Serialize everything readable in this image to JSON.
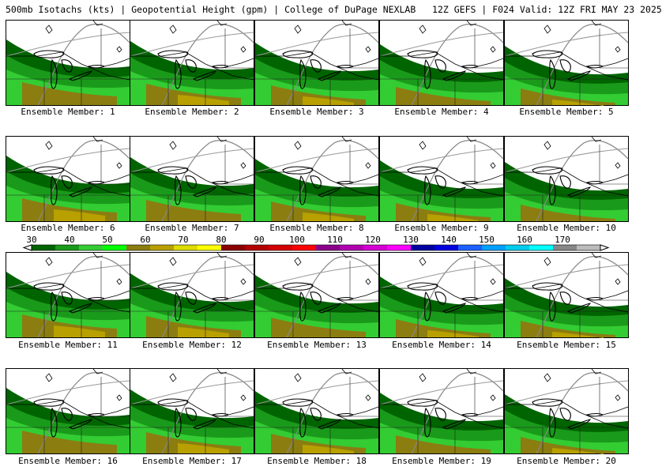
{
  "title": "500mb Isotachs (kts) | Geopotential Height (gpm) | College of DuPage NEXLAB   12Z GEFS | F024 Valid: 12Z FRI MAY 23 2025",
  "caption_prefix": "Ensemble Member:",
  "members": [
    {
      "number": "1",
      "label": "Ensemble Member: 1"
    },
    {
      "number": "2",
      "label": "Ensemble Member: 2"
    },
    {
      "number": "3",
      "label": "Ensemble Member: 3"
    },
    {
      "number": "4",
      "label": "Ensemble Member: 4"
    },
    {
      "number": "5",
      "label": "Ensemble Member: 5"
    },
    {
      "number": "6",
      "label": "Ensemble Member: 6"
    },
    {
      "number": "7",
      "label": "Ensemble Member: 7"
    },
    {
      "number": "8",
      "label": "Ensemble Member: 8"
    },
    {
      "number": "9",
      "label": "Ensemble Member: 9"
    },
    {
      "number": "10",
      "label": "Ensemble Member: 10"
    },
    {
      "number": "11",
      "label": "Ensemble Member: 11"
    },
    {
      "number": "12",
      "label": "Ensemble Member: 12"
    },
    {
      "number": "13",
      "label": "Ensemble Member: 13"
    },
    {
      "number": "14",
      "label": "Ensemble Member: 14"
    },
    {
      "number": "15",
      "label": "Ensemble Member: 15"
    },
    {
      "number": "16",
      "label": "Ensemble Member: 16"
    },
    {
      "number": "17",
      "label": "Ensemble Member: 17"
    },
    {
      "number": "18",
      "label": "Ensemble Member: 18"
    },
    {
      "number": "19",
      "label": "Ensemble Member: 19"
    },
    {
      "number": "20",
      "label": "Ensemble Member: 20"
    }
  ],
  "colorbar": {
    "labels": [
      "30",
      "40",
      "50",
      "60",
      "70",
      "80",
      "90",
      "100",
      "110",
      "120",
      "130",
      "140",
      "150",
      "160",
      "170"
    ],
    "colors": [
      "#006400",
      "#1a9a1a",
      "#33cc33",
      "#00ff00",
      "#8b7d10",
      "#b8a000",
      "#dddd00",
      "#ffff00",
      "#8b0000",
      "#b30000",
      "#d40000",
      "#ff0000",
      "#8b008b",
      "#b000b0",
      "#d400d4",
      "#ff00ff",
      "#0000a0",
      "#0000e0",
      "#1e60ff",
      "#00a0ff",
      "#00ccee",
      "#00ffff",
      "#888888",
      "#bbbbbb"
    ]
  },
  "wind_colors": {
    "c30": "#006400",
    "c40": "#1a9a1a",
    "c45": "#33cc33",
    "c50": "#00ff00",
    "c55": "#8b7d10",
    "c60": "#b8a000"
  }
}
